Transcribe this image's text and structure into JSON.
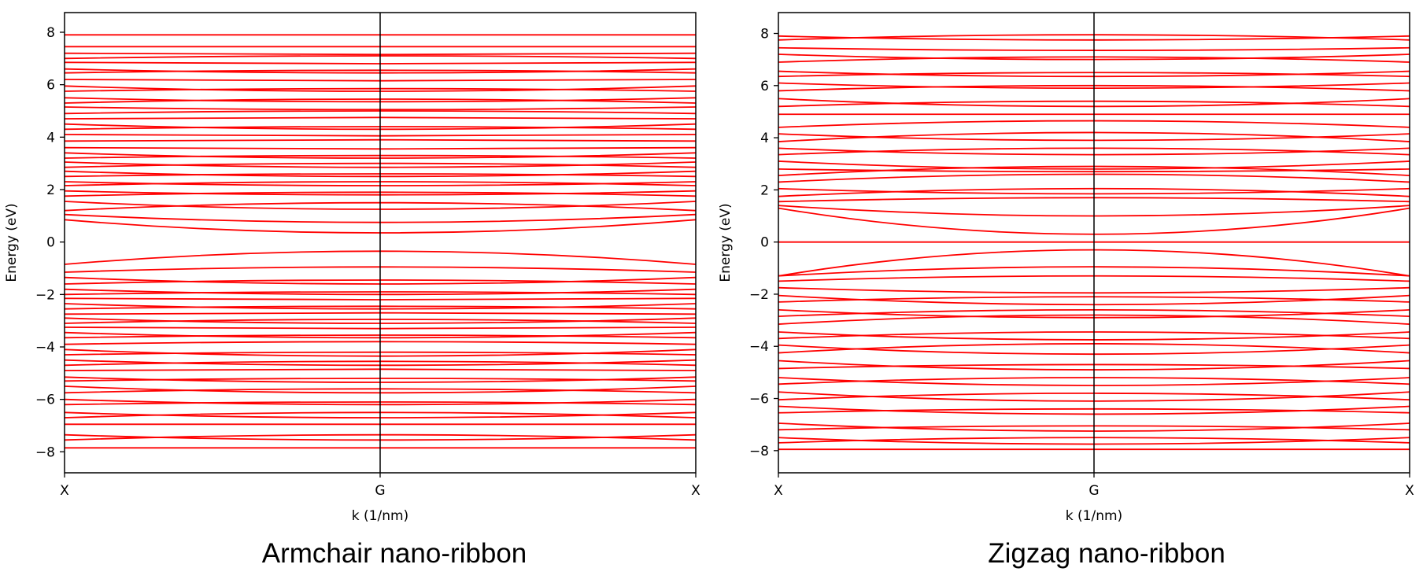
{
  "figure": {
    "captions": [
      "Armchair nano-ribbon",
      "Zigzag nano-ribbon"
    ]
  },
  "chart_data": [
    {
      "type": "line",
      "caption": "Armchair nano-ribbon",
      "xlabel": "k (1/nm)",
      "ylabel": "Energy (eV)",
      "xticks": [
        "X",
        "G",
        "X"
      ],
      "yticks": [
        -8,
        -6,
        -4,
        -2,
        0,
        2,
        4,
        6,
        8
      ],
      "ylim": [
        -8.8,
        8.75
      ],
      "line_color": "#ff0000",
      "vline_at": "G",
      "grid": false,
      "band_gap": {
        "valence_max": -0.35,
        "conduction_min": 0.35
      },
      "series_description": "bands plotted along X-G-X, symmetric about G",
      "series": [
        {
          "edge": -7.85,
          "center": -7.85
        },
        {
          "edge": -7.55,
          "center": -7.35
        },
        {
          "edge": -7.35,
          "center": -7.55
        },
        {
          "edge": -6.95,
          "center": -6.95
        },
        {
          "edge": -6.7,
          "center": -6.5
        },
        {
          "edge": -6.5,
          "center": -6.7
        },
        {
          "edge": -6.2,
          "center": -6.1
        },
        {
          "edge": -6.0,
          "center": -6.2
        },
        {
          "edge": -5.75,
          "center": -5.6
        },
        {
          "edge": -5.5,
          "center": -5.75
        },
        {
          "edge": -5.3,
          "center": -5.2
        },
        {
          "edge": -5.15,
          "center": -5.35
        },
        {
          "edge": -4.9,
          "center": -4.85
        },
        {
          "edge": -4.7,
          "center": -4.55
        },
        {
          "edge": -4.5,
          "center": -4.7
        },
        {
          "edge": -4.3,
          "center": -4.2
        },
        {
          "edge": -4.1,
          "center": -4.35
        },
        {
          "edge": -3.9,
          "center": -3.8
        },
        {
          "edge": -3.65,
          "center": -3.55
        },
        {
          "edge": -3.45,
          "center": -3.65
        },
        {
          "edge": -3.25,
          "center": -3.3
        },
        {
          "edge": -3.1,
          "center": -2.95
        },
        {
          "edge": -2.9,
          "center": -3.1
        },
        {
          "edge": -2.75,
          "center": -2.7
        },
        {
          "edge": -2.55,
          "center": -2.45
        },
        {
          "edge": -2.35,
          "center": -2.55
        },
        {
          "edge": -2.15,
          "center": -2.2
        },
        {
          "edge": -2.0,
          "center": -1.9
        },
        {
          "edge": -1.8,
          "center": -2.0
        },
        {
          "edge": -1.6,
          "center": -1.45
        },
        {
          "edge": -1.35,
          "center": -1.6
        },
        {
          "edge": -1.15,
          "center": -0.95
        },
        {
          "edge": -0.85,
          "center": -0.35
        },
        {
          "edge": 0.85,
          "center": 0.35
        },
        {
          "edge": 1.05,
          "center": 0.75
        },
        {
          "edge": 1.2,
          "center": 1.5
        },
        {
          "edge": 1.55,
          "center": 1.25
        },
        {
          "edge": 1.75,
          "center": 1.9
        },
        {
          "edge": 1.95,
          "center": 1.8
        },
        {
          "edge": 2.15,
          "center": 2.3
        },
        {
          "edge": 2.3,
          "center": 2.15
        },
        {
          "edge": 2.5,
          "center": 2.6
        },
        {
          "edge": 2.7,
          "center": 2.5
        },
        {
          "edge": 2.85,
          "center": 3.0
        },
        {
          "edge": 3.05,
          "center": 2.85
        },
        {
          "edge": 3.2,
          "center": 3.3
        },
        {
          "edge": 3.4,
          "center": 3.2
        },
        {
          "edge": 3.6,
          "center": 3.55
        },
        {
          "edge": 3.85,
          "center": 3.9
        },
        {
          "edge": 4.1,
          "center": 4.05
        },
        {
          "edge": 4.3,
          "center": 4.4
        },
        {
          "edge": 4.5,
          "center": 4.3
        },
        {
          "edge": 4.7,
          "center": 4.75
        },
        {
          "edge": 4.9,
          "center": 5.0
        },
        {
          "edge": 5.15,
          "center": 5.05
        },
        {
          "edge": 5.3,
          "center": 5.45
        },
        {
          "edge": 5.5,
          "center": 5.35
        },
        {
          "edge": 5.75,
          "center": 5.85
        },
        {
          "edge": 5.95,
          "center": 5.75
        },
        {
          "edge": 6.2,
          "center": 6.15
        },
        {
          "edge": 6.45,
          "center": 6.55
        },
        {
          "edge": 6.6,
          "center": 6.45
        },
        {
          "edge": 6.85,
          "center": 6.8
        },
        {
          "edge": 7.0,
          "center": 7.1
        },
        {
          "edge": 7.2,
          "center": 7.15
        },
        {
          "edge": 7.45,
          "center": 7.45
        },
        {
          "edge": 7.9,
          "center": 7.9
        }
      ]
    },
    {
      "type": "line",
      "caption": "Zigzag nano-ribbon",
      "xlabel": "k (1/nm)",
      "ylabel": "Energy (eV)",
      "xticks": [
        "X",
        "G",
        "X"
      ],
      "yticks": [
        -8,
        -6,
        -4,
        -2,
        0,
        2,
        4,
        6,
        8
      ],
      "ylim": [
        -8.85,
        8.8
      ],
      "line_color": "#ff0000",
      "vline_at": "G",
      "grid": false,
      "flat_band_at": 0,
      "series_description": "bands plotted along X-G-X, symmetric about G",
      "series": [
        {
          "edge": -7.95,
          "center": -7.95
        },
        {
          "edge": -7.7,
          "center": -7.5
        },
        {
          "edge": -7.5,
          "center": -7.75
        },
        {
          "edge": -7.2,
          "center": -7.05
        },
        {
          "edge": -6.95,
          "center": -7.25
        },
        {
          "edge": -6.55,
          "center": -6.4
        },
        {
          "edge": -6.3,
          "center": -6.6
        },
        {
          "edge": -6.05,
          "center": -5.8
        },
        {
          "edge": -5.75,
          "center": -6.1
        },
        {
          "edge": -5.45,
          "center": -5.2
        },
        {
          "edge": -5.2,
          "center": -5.5
        },
        {
          "edge": -4.85,
          "center": -4.7
        },
        {
          "edge": -4.55,
          "center": -4.9
        },
        {
          "edge": -4.25,
          "center": -3.9
        },
        {
          "edge": -3.95,
          "center": -4.3
        },
        {
          "edge": -3.7,
          "center": -3.45
        },
        {
          "edge": -3.45,
          "center": -3.75
        },
        {
          "edge": -3.15,
          "center": -2.8
        },
        {
          "edge": -2.85,
          "center": -2.6
        },
        {
          "edge": -2.6,
          "center": -2.9
        },
        {
          "edge": -2.3,
          "center": -2.1
        },
        {
          "edge": -2.05,
          "center": -2.4
        },
        {
          "edge": -1.75,
          "center": -1.95
        },
        {
          "edge": -1.5,
          "center": -1.3
        },
        {
          "edge": -1.3,
          "center": -0.95
        },
        {
          "edge": -1.3,
          "center": -0.3
        },
        {
          "edge": 0.0,
          "center": 0.0
        },
        {
          "edge": 1.3,
          "center": 0.3
        },
        {
          "edge": 1.4,
          "center": 1.0
        },
        {
          "edge": 1.55,
          "center": 1.7
        },
        {
          "edge": 1.75,
          "center": 2.05
        },
        {
          "edge": 2.05,
          "center": 1.85
        },
        {
          "edge": 2.3,
          "center": 2.6
        },
        {
          "edge": 2.55,
          "center": 2.9
        },
        {
          "edge": 2.8,
          "center": 2.7
        },
        {
          "edge": 3.1,
          "center": 2.8
        },
        {
          "edge": 3.35,
          "center": 3.6
        },
        {
          "edge": 3.6,
          "center": 3.35
        },
        {
          "edge": 3.85,
          "center": 4.2
        },
        {
          "edge": 4.15,
          "center": 3.9
        },
        {
          "edge": 4.4,
          "center": 4.65
        },
        {
          "edge": 4.9,
          "center": 4.9
        },
        {
          "edge": 5.2,
          "center": 5.4
        },
        {
          "edge": 5.5,
          "center": 5.2
        },
        {
          "edge": 5.8,
          "center": 6.0
        },
        {
          "edge": 6.1,
          "center": 5.9
        },
        {
          "edge": 6.35,
          "center": 6.5
        },
        {
          "edge": 6.55,
          "center": 6.35
        },
        {
          "edge": 6.9,
          "center": 7.1
        },
        {
          "edge": 7.2,
          "center": 7.0
        },
        {
          "edge": 7.45,
          "center": 7.35
        },
        {
          "edge": 7.75,
          "center": 7.95
        },
        {
          "edge": 7.9,
          "center": 7.75
        }
      ]
    }
  ]
}
